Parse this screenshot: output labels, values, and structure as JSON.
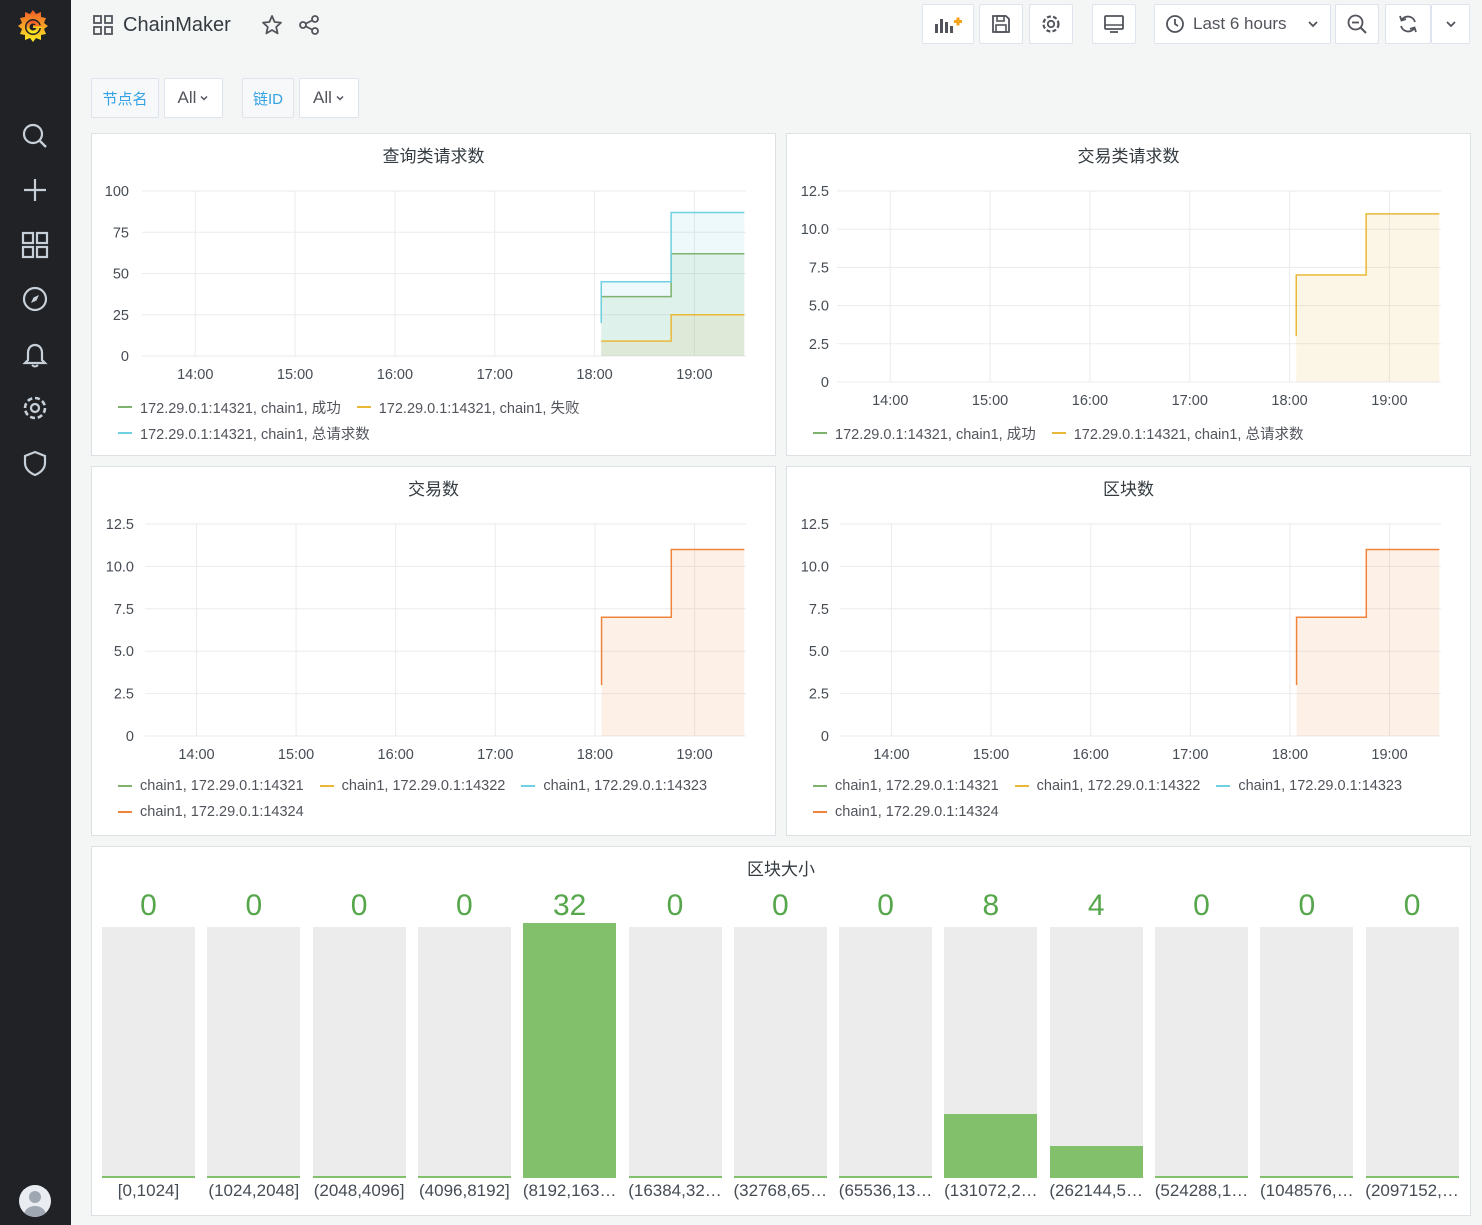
{
  "dashboard": {
    "title": "ChainMaker"
  },
  "toolbar": {
    "time_range": "Last 6 hours"
  },
  "variables": [
    {
      "label": "节点名",
      "value": "All"
    },
    {
      "label": "链ID",
      "value": "All"
    }
  ],
  "colors": {
    "green": "#7eb26d",
    "yellow": "#eab839",
    "cyan": "#6ed0e0",
    "orange": "#ef843c",
    "bar_fill": "#82c06c",
    "bar_value": "#56a64b"
  },
  "chart_data": [
    {
      "type": "area",
      "title": "查询类请求数",
      "x_ticks": [
        "14:00",
        "15:00",
        "16:00",
        "17:00",
        "18:00",
        "19:00"
      ],
      "y_ticks": [
        "0",
        "25",
        "50",
        "75",
        "100"
      ],
      "ylim": [
        0,
        100
      ],
      "series": [
        {
          "name": "172.29.0.1:14321, chain1, 成功",
          "color": "#7eb26d",
          "x": [
            "18:04",
            "18:04",
            "18:46",
            "18:46",
            "19:30"
          ],
          "values": [
            22,
            36,
            36,
            62,
            62
          ]
        },
        {
          "name": "172.29.0.1:14321, chain1, 失败",
          "color": "#eab839",
          "x": [
            "18:04",
            "18:46",
            "18:46",
            "19:30"
          ],
          "values": [
            9,
            9,
            25,
            25
          ]
        },
        {
          "name": "172.29.0.1:14321, chain1, 总请求数",
          "color": "#6ed0e0",
          "x": [
            "18:04",
            "18:04",
            "18:46",
            "18:46",
            "19:30"
          ],
          "values": [
            20,
            45,
            45,
            87,
            87
          ]
        }
      ]
    },
    {
      "type": "area",
      "title": "交易类请求数",
      "x_ticks": [
        "14:00",
        "15:00",
        "16:00",
        "17:00",
        "18:00",
        "19:00"
      ],
      "y_ticks": [
        "0",
        "2.5",
        "5.0",
        "7.5",
        "10.0",
        "12.5"
      ],
      "ylim": [
        0,
        12.5
      ],
      "series": [
        {
          "name": "172.29.0.1:14321, chain1, 成功",
          "color": "#7eb26d",
          "x": [],
          "values": []
        },
        {
          "name": "172.29.0.1:14321, chain1, 总请求数",
          "color": "#eab839",
          "x": [
            "18:04",
            "18:04",
            "18:46",
            "18:46",
            "19:30"
          ],
          "values": [
            3,
            7,
            7,
            11,
            11
          ]
        }
      ]
    },
    {
      "type": "area",
      "title": "交易数",
      "x_ticks": [
        "14:00",
        "15:00",
        "16:00",
        "17:00",
        "18:00",
        "19:00"
      ],
      "y_ticks": [
        "0",
        "2.5",
        "5.0",
        "7.5",
        "10.0",
        "12.5"
      ],
      "ylim": [
        0,
        12.5
      ],
      "series": [
        {
          "name": "chain1, 172.29.0.1:14321",
          "color": "#7eb26d",
          "x": [],
          "values": []
        },
        {
          "name": "chain1, 172.29.0.1:14322",
          "color": "#eab839",
          "x": [],
          "values": []
        },
        {
          "name": "chain1, 172.29.0.1:14323",
          "color": "#6ed0e0",
          "x": [],
          "values": []
        },
        {
          "name": "chain1, 172.29.0.1:14324",
          "color": "#ef843c",
          "x": [
            "18:04",
            "18:04",
            "18:46",
            "18:46",
            "19:30"
          ],
          "values": [
            3,
            7,
            7,
            11,
            11
          ]
        }
      ]
    },
    {
      "type": "area",
      "title": "区块数",
      "x_ticks": [
        "14:00",
        "15:00",
        "16:00",
        "17:00",
        "18:00",
        "19:00"
      ],
      "y_ticks": [
        "0",
        "2.5",
        "5.0",
        "7.5",
        "10.0",
        "12.5"
      ],
      "ylim": [
        0,
        12.5
      ],
      "series": [
        {
          "name": "chain1, 172.29.0.1:14321",
          "color": "#7eb26d",
          "x": [],
          "values": []
        },
        {
          "name": "chain1, 172.29.0.1:14322",
          "color": "#eab839",
          "x": [],
          "values": []
        },
        {
          "name": "chain1, 172.29.0.1:14323",
          "color": "#6ed0e0",
          "x": [],
          "values": []
        },
        {
          "name": "chain1, 172.29.0.1:14324",
          "color": "#ef843c",
          "x": [
            "18:04",
            "18:04",
            "18:46",
            "18:46",
            "19:30"
          ],
          "values": [
            3,
            7,
            7,
            11,
            11
          ]
        }
      ]
    },
    {
      "type": "bar",
      "title": "区块大小",
      "max": 32,
      "categories": [
        "[0,1024]",
        "(1024,2048]",
        "(2048,4096]",
        "(4096,8192]",
        "(8192,163…",
        "(16384,32…",
        "(32768,65…",
        "(65536,13…",
        "(131072,2…",
        "(262144,5…",
        "(524288,1…",
        "(1048576,…",
        "(2097152,…"
      ],
      "values": [
        0,
        0,
        0,
        0,
        32,
        0,
        0,
        0,
        8,
        4,
        0,
        0,
        0
      ],
      "value_labels": [
        "0",
        "0",
        "0",
        "0",
        "32",
        "0",
        "0",
        "0",
        "8",
        "4",
        "0",
        "0",
        "0"
      ]
    }
  ]
}
